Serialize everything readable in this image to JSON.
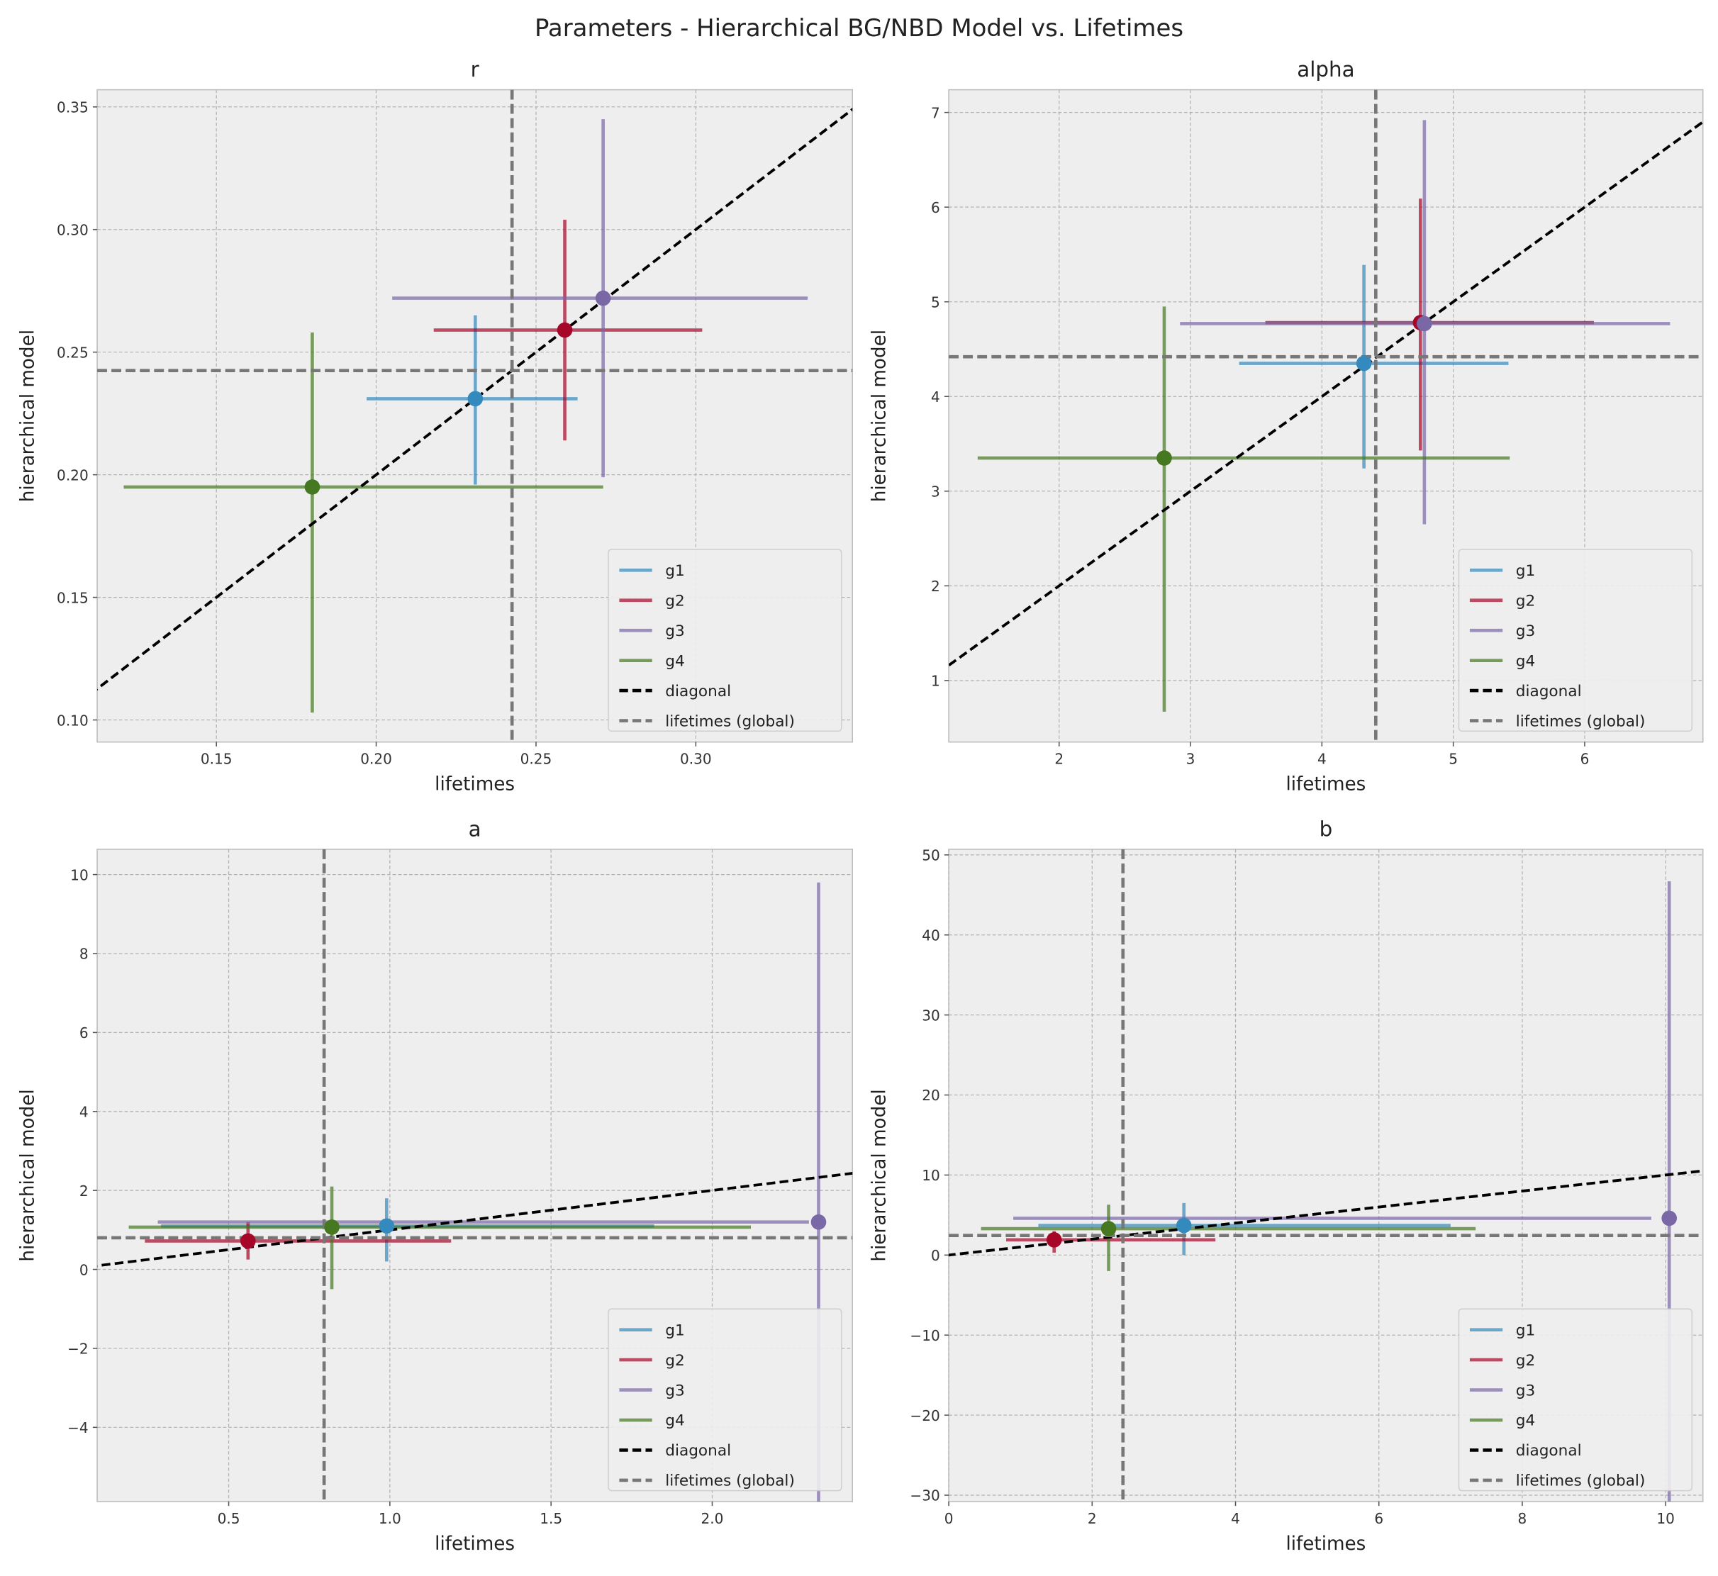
{
  "title": "Parameters - Hierarchical BG/NBD Model vs. Lifetimes",
  "legend_labels": {
    "diagonal": "diagonal",
    "global": "lifetimes (global)"
  },
  "colors": {
    "g1": "#348ABD",
    "g2": "#A60628",
    "g3": "#7A68A6",
    "g4": "#467821",
    "diagonal": "#000000",
    "global": "#777777",
    "background": "#eeeeee",
    "grid": "#b2b2b2"
  },
  "chart_data": [
    {
      "type": "scatter",
      "title": "r",
      "xlabel": "lifetimes",
      "ylabel": "hierarchical model",
      "xlim": [
        0.1127,
        0.349
      ],
      "ylim": [
        0.091,
        0.357
      ],
      "xticks": [
        [
          "0.15",
          0.15
        ],
        [
          "0.20",
          0.2
        ],
        [
          "0.25",
          0.25
        ],
        [
          "0.30",
          0.3
        ]
      ],
      "yticks": [
        [
          "0.10",
          0.1
        ],
        [
          "0.15",
          0.15
        ],
        [
          "0.20",
          0.2
        ],
        [
          "0.25",
          0.25
        ],
        [
          "0.30",
          0.3
        ],
        [
          "0.35",
          0.35
        ]
      ],
      "groups": [
        {
          "name": "g1",
          "x": 0.231,
          "y": 0.231,
          "x_lo": 0.197,
          "x_hi": 0.263,
          "y_lo": 0.196,
          "y_hi": 0.265
        },
        {
          "name": "g2",
          "x": 0.259,
          "y": 0.259,
          "x_lo": 0.218,
          "x_hi": 0.302,
          "y_lo": 0.214,
          "y_hi": 0.304
        },
        {
          "name": "g3",
          "x": 0.271,
          "y": 0.272,
          "x_lo": 0.205,
          "x_hi": 0.335,
          "y_lo": 0.199,
          "y_hi": 0.345
        },
        {
          "name": "g4",
          "x": 0.18,
          "y": 0.195,
          "x_lo": 0.121,
          "x_hi": 0.271,
          "y_lo": 0.103,
          "y_hi": 0.258
        }
      ],
      "global": {
        "x": 0.2425,
        "y": 0.2425
      },
      "legend": "lower right"
    },
    {
      "type": "scatter",
      "title": "alpha",
      "xlabel": "lifetimes",
      "ylabel": "hierarchical model",
      "xlim": [
        1.16,
        6.9
      ],
      "ylim": [
        0.35,
        7.24
      ],
      "xticks": [
        [
          "2",
          2
        ],
        [
          "3",
          3
        ],
        [
          "4",
          4
        ],
        [
          "5",
          5
        ],
        [
          "6",
          6
        ]
      ],
      "yticks": [
        [
          "1",
          1
        ],
        [
          "2",
          2
        ],
        [
          "3",
          3
        ],
        [
          "4",
          4
        ],
        [
          "5",
          5
        ],
        [
          "6",
          6
        ],
        [
          "7",
          7
        ]
      ],
      "groups": [
        {
          "name": "g1",
          "x": 4.32,
          "y": 4.35,
          "x_lo": 3.37,
          "x_hi": 5.42,
          "y_lo": 3.24,
          "y_hi": 5.39
        },
        {
          "name": "g2",
          "x": 4.75,
          "y": 4.78,
          "x_lo": 3.57,
          "x_hi": 6.07,
          "y_lo": 3.43,
          "y_hi": 6.09
        },
        {
          "name": "g3",
          "x": 4.78,
          "y": 4.77,
          "x_lo": 2.92,
          "x_hi": 6.65,
          "y_lo": 2.65,
          "y_hi": 6.92
        },
        {
          "name": "g4",
          "x": 2.8,
          "y": 3.35,
          "x_lo": 1.38,
          "x_hi": 5.43,
          "y_lo": 0.67,
          "y_hi": 4.95
        }
      ],
      "global": {
        "x": 4.41,
        "y": 4.42
      },
      "legend": "lower right"
    },
    {
      "type": "scatter",
      "title": "a",
      "xlabel": "lifetimes",
      "ylabel": "hierarchical model",
      "xlim": [
        0.092,
        2.435
      ],
      "ylim": [
        -5.88,
        10.64
      ],
      "xticks": [
        [
          "0.5",
          0.5
        ],
        [
          "1.0",
          1.0
        ],
        [
          "1.5",
          1.5
        ],
        [
          "2.0",
          2.0
        ]
      ],
      "yticks": [
        [
          "−4",
          -4
        ],
        [
          "−2",
          -2
        ],
        [
          "0",
          0
        ],
        [
          "2",
          2
        ],
        [
          "4",
          4
        ],
        [
          "6",
          6
        ],
        [
          "8",
          8
        ],
        [
          "10",
          10
        ]
      ],
      "groups": [
        {
          "name": "g1",
          "x": 0.99,
          "y": 1.1,
          "x_lo": 0.29,
          "x_hi": 1.82,
          "y_lo": 0.2,
          "y_hi": 1.8
        },
        {
          "name": "g2",
          "x": 0.56,
          "y": 0.72,
          "x_lo": 0.24,
          "x_hi": 1.19,
          "y_lo": 0.25,
          "y_hi": 1.2
        },
        {
          "name": "g3",
          "x": 2.33,
          "y": 1.2,
          "x_lo": 0.28,
          "x_hi": 2.3,
          "y_lo": -5.88,
          "y_hi": 9.8
        },
        {
          "name": "g4",
          "x": 0.82,
          "y": 1.07,
          "x_lo": 0.19,
          "x_hi": 2.12,
          "y_lo": -0.5,
          "y_hi": 2.1
        }
      ],
      "global": {
        "x": 0.796,
        "y": 0.8
      },
      "legend": "lower right"
    },
    {
      "type": "scatter",
      "title": "b",
      "xlabel": "lifetimes",
      "ylabel": "hierarchical model",
      "xlim": [
        0,
        10.52
      ],
      "ylim": [
        -30.8,
        50.7
      ],
      "xticks": [
        [
          "0",
          0
        ],
        [
          "2",
          2
        ],
        [
          "4",
          4
        ],
        [
          "6",
          6
        ],
        [
          "8",
          8
        ],
        [
          "10",
          10
        ]
      ],
      "yticks": [
        [
          "−30",
          -30
        ],
        [
          "−20",
          -20
        ],
        [
          "−10",
          -10
        ],
        [
          "0",
          0
        ],
        [
          "10",
          10
        ],
        [
          "20",
          20
        ],
        [
          "30",
          30
        ],
        [
          "40",
          40
        ],
        [
          "50",
          50
        ]
      ],
      "groups": [
        {
          "name": "g1",
          "x": 3.28,
          "y": 3.7,
          "x_lo": 1.25,
          "x_hi": 7.0,
          "y_lo": 0.0,
          "y_hi": 6.5
        },
        {
          "name": "g2",
          "x": 1.47,
          "y": 1.9,
          "x_lo": 0.8,
          "x_hi": 3.72,
          "y_lo": 0.3,
          "y_hi": 3.0
        },
        {
          "name": "g3",
          "x": 10.05,
          "y": 4.6,
          "x_lo": 0.9,
          "x_hi": 9.8,
          "y_lo": -30.8,
          "y_hi": 46.7
        },
        {
          "name": "g4",
          "x": 2.23,
          "y": 3.3,
          "x_lo": 0.45,
          "x_hi": 7.35,
          "y_lo": -2.0,
          "y_hi": 6.3
        }
      ],
      "global": {
        "x": 2.43,
        "y": 2.45
      },
      "legend": "lower right"
    }
  ]
}
